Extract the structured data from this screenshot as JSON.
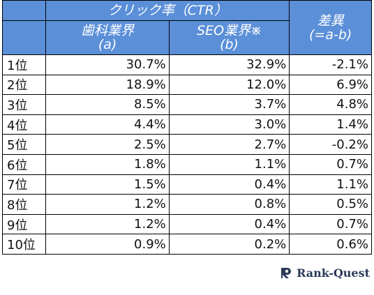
{
  "header": {
    "ctr": "クリック率（CTR）",
    "col_a": {
      "name": "歯科業界",
      "sub": "(a)"
    },
    "col_b": {
      "name": "SEO業界※",
      "sub": "(b)"
    },
    "diff": {
      "name": "差異",
      "sub": "(=a-b)"
    }
  },
  "table": {
    "rows": [
      [
        "1位",
        "30.7%",
        "32.9%",
        "-2.1%"
      ],
      [
        "2位",
        "18.9%",
        "12.0%",
        "6.9%"
      ],
      [
        "3位",
        "8.5%",
        "3.7%",
        "4.8%"
      ],
      [
        "4位",
        "4.4%",
        "3.0%",
        "1.4%"
      ],
      [
        "5位",
        "2.5%",
        "2.7%",
        "-0.2%"
      ],
      [
        "6位",
        "1.8%",
        "1.1%",
        "0.7%"
      ],
      [
        "7位",
        "1.5%",
        "0.4%",
        "1.1%"
      ],
      [
        "8位",
        "1.2%",
        "0.8%",
        "0.5%"
      ],
      [
        "9位",
        "1.2%",
        "0.4%",
        "0.7%"
      ],
      [
        "10位",
        "0.9%",
        "0.2%",
        "0.6%"
      ]
    ]
  },
  "logo": {
    "text": "Rank-Quest"
  }
}
